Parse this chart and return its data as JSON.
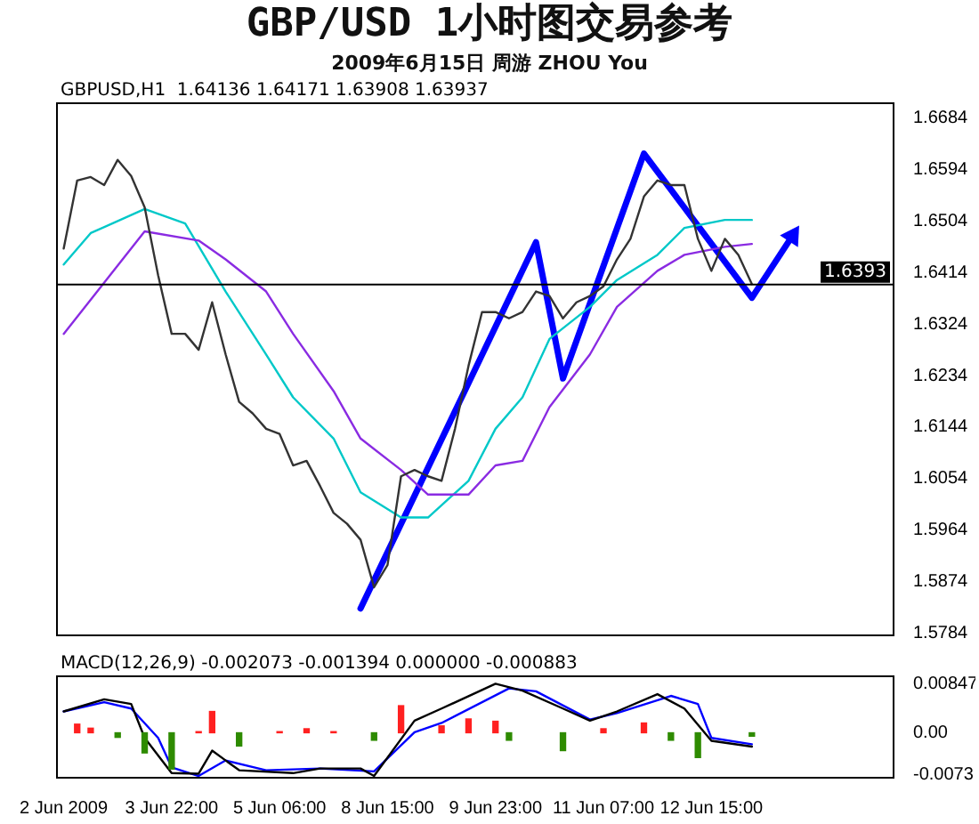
{
  "chart_data": [
    {
      "type": "line",
      "title": "GBP/USD 1小时图交易参考",
      "subtitle": "2009年6月15日   周游 ZHOU You",
      "annotations": [
        "GBPUSD,H1  1.64136 1.64171 1.63908 1.63937"
      ],
      "categories": [
        null,
        null,
        null,
        null,
        null,
        null,
        null,
        null,
        null,
        null,
        null,
        null,
        null,
        null,
        null,
        null,
        null,
        null,
        null,
        null,
        null,
        null,
        null,
        null,
        null,
        null,
        null,
        null,
        null,
        null,
        null,
        null,
        null,
        null,
        null,
        null,
        null,
        null,
        null,
        null,
        null,
        null,
        null,
        null,
        null,
        null,
        null,
        null,
        null,
        null,
        null,
        null,
        null,
        null,
        null,
        null,
        null,
        null,
        null,
        null,
        null,
        null
      ],
      "ylim": [
        1.578,
        1.671
      ],
      "yticks": [
        1.5784,
        1.5874,
        1.5964,
        1.6054,
        1.6144,
        1.6234,
        1.6324,
        1.6414,
        1.6504,
        1.6594,
        1.6684
      ],
      "tick_labels": "y",
      "grid": false,
      "legend": false,
      "marker": "none",
      "line_style": "solid",
      "ref_lines": [
        {
          "axis": "y",
          "value": 1.6393,
          "label": "1.6393",
          "color": "#000000"
        }
      ],
      "series": [
        {
          "color": "#333333",
          "values": [
            1.6456,
            1.6575,
            1.6581,
            1.6567,
            1.6611,
            1.6583,
            1.6528,
            1.6409,
            1.6307,
            1.6307,
            1.6279,
            1.6362,
            1.6271,
            1.6188,
            1.6168,
            1.6141,
            1.6132,
            1.6077,
            1.6085,
            1.6041,
            1.5994,
            1.5975,
            1.5947,
            1.5864,
            1.5903,
            1.6058,
            1.6069,
            1.6058,
            1.605,
            1.6141,
            1.6251,
            1.6345,
            1.6345,
            1.6334,
            1.6345,
            1.6381,
            1.6373,
            1.6334,
            1.6362,
            1.6373,
            1.639,
            1.6437,
            1.6473,
            1.6547,
            1.6575,
            1.6567,
            1.6567,
            1.6473,
            1.6417,
            1.6473,
            1.6445,
            1.6394,
            null,
            null,
            null,
            null,
            null,
            null,
            null,
            null,
            null,
            null
          ]
        },
        {
          "color": "#8a2be2",
          "values": [
            1.6307,
            null,
            null,
            null,
            null,
            null,
            1.6486,
            null,
            null,
            null,
            1.647,
            null,
            1.6437,
            null,
            null,
            1.6381,
            null,
            1.6307,
            null,
            null,
            1.6207,
            null,
            1.6124,
            null,
            null,
            1.6069,
            null,
            1.6026,
            null,
            null,
            1.6026,
            null,
            1.6077,
            null,
            1.6085,
            null,
            1.6179,
            null,
            null,
            1.6271,
            null,
            1.6354,
            null,
            null,
            1.6417,
            null,
            1.6445,
            null,
            null,
            1.6459,
            null,
            1.6464,
            null,
            null,
            null,
            null,
            null,
            null,
            null,
            null,
            null,
            null
          ]
        },
        {
          "color": "#00c8c8",
          "values": [
            1.6428,
            null,
            1.6483,
            null,
            null,
            null,
            1.6525,
            null,
            null,
            1.65,
            null,
            null,
            1.6381,
            null,
            null,
            1.6271,
            null,
            1.6196,
            null,
            null,
            1.6124,
            null,
            1.603,
            null,
            null,
            1.5986,
            null,
            1.5986,
            null,
            null,
            1.605,
            null,
            1.6141,
            null,
            1.6196,
            null,
            1.6298,
            null,
            null,
            1.6354,
            null,
            1.6401,
            null,
            null,
            1.6445,
            null,
            1.6492,
            null,
            null,
            1.6506,
            null,
            1.6506,
            null,
            null,
            null,
            null,
            null,
            null,
            null,
            null,
            null,
            null
          ]
        },
        {
          "color": "#0000ff",
          "values": [
            null,
            null,
            null,
            null,
            null,
            null,
            null,
            null,
            null,
            null,
            null,
            null,
            null,
            null,
            null,
            null,
            null,
            null,
            null,
            null,
            null,
            null,
            1.5827,
            null,
            null,
            null,
            null,
            null,
            null,
            null,
            null,
            null,
            null,
            null,
            null,
            1.6467,
            null,
            1.6229,
            null,
            null,
            null,
            null,
            null,
            1.6622,
            null,
            null,
            null,
            null,
            null,
            null,
            null,
            1.637,
            null,
            null,
            1.6478,
            null,
            null,
            null,
            null,
            null,
            null,
            null
          ]
        }
      ]
    },
    {
      "type": "line",
      "annotations": [
        "MACD(12,26,9) -0.002073 -0.001394 0.000000 -0.000883"
      ],
      "categories": [
        "2 Jun 2009",
        null,
        null,
        null,
        null,
        null,
        null,
        null,
        "3 Jun 22:00",
        null,
        null,
        null,
        null,
        null,
        null,
        null,
        "5 Jun 06:00",
        null,
        null,
        null,
        null,
        null,
        null,
        null,
        "8 Jun 15:00",
        null,
        null,
        null,
        null,
        null,
        null,
        null,
        "9 Jun 23:00",
        null,
        null,
        null,
        null,
        null,
        null,
        null,
        "11 Jun 07:00",
        null,
        null,
        null,
        null,
        null,
        null,
        null,
        "12 Jun 15:00",
        null,
        null,
        null,
        null,
        null,
        null,
        null,
        null,
        null,
        null,
        null,
        null,
        null
      ],
      "ylim": [
        -0.0078,
        0.0098
      ],
      "yticks": [
        -0.0073,
        {
          "value": 0,
          "label": "0.00"
        },
        0.00847
      ],
      "grid": false,
      "legend": false,
      "marker": "none",
      "line_style": "solid",
      "series": [
        {
          "type": "bar",
          "color": "#ff2020",
          "values": [
            null,
            0.0015,
            0.0008,
            null,
            null,
            null,
            null,
            null,
            null,
            null,
            0.0002,
            0.0037,
            null,
            null,
            null,
            null,
            0.0002,
            null,
            0.0007,
            null,
            0.0002,
            null,
            null,
            null,
            null,
            0.0047,
            null,
            null,
            0.0012,
            null,
            0.0024,
            null,
            0.002,
            null,
            null,
            null,
            null,
            null,
            null,
            null,
            0.0007,
            null,
            null,
            0.0017,
            null,
            null,
            null,
            null,
            null,
            null,
            null,
            null,
            null,
            null,
            null,
            null,
            null,
            null,
            null,
            null,
            null,
            null
          ]
        },
        {
          "type": "bar",
          "color": "#2e8b00",
          "values": [
            null,
            null,
            null,
            null,
            -0.0008,
            null,
            -0.0035,
            null,
            -0.0063,
            null,
            null,
            null,
            null,
            -0.0023,
            null,
            null,
            null,
            null,
            null,
            null,
            null,
            null,
            null,
            -0.0013,
            null,
            null,
            null,
            null,
            null,
            null,
            null,
            null,
            null,
            -0.0013,
            null,
            null,
            null,
            -0.0031,
            null,
            null,
            null,
            null,
            null,
            null,
            null,
            -0.0013,
            null,
            -0.0043,
            null,
            null,
            null,
            -0.0006,
            null,
            null,
            null,
            null,
            null,
            null,
            null,
            null,
            null,
            null
          ]
        },
        {
          "color": "#000000",
          "values": [
            0.0037,
            null,
            null,
            0.0058,
            null,
            0.005,
            -0.0009,
            null,
            -0.007,
            null,
            -0.0071,
            -0.0031,
            null,
            -0.0065,
            null,
            null,
            null,
            -0.007,
            null,
            -0.0062,
            null,
            null,
            -0.0062,
            -0.0075,
            null,
            null,
            0.0021,
            null,
            0.0042,
            null,
            null,
            null,
            0.0085,
            null,
            0.0073,
            null,
            null,
            0.0042,
            null,
            0.0021,
            null,
            0.0037,
            null,
            null,
            0.0067,
            null,
            0.0042,
            null,
            -0.0014,
            null,
            null,
            -0.0024,
            null,
            null,
            null,
            null,
            null,
            null,
            null,
            null,
            null,
            null
          ]
        },
        {
          "color": "#0000ff",
          "values": [
            0.0037,
            null,
            null,
            0.0053,
            null,
            0.0042,
            null,
            -0.0009,
            -0.006,
            null,
            -0.0075,
            null,
            -0.0048,
            null,
            null,
            -0.0065,
            null,
            null,
            null,
            -0.0062,
            null,
            null,
            null,
            -0.0067,
            null,
            null,
            0.0001,
            null,
            0.0017,
            null,
            null,
            null,
            null,
            0.0077,
            null,
            0.0072,
            null,
            null,
            null,
            0.0023,
            null,
            0.0034,
            null,
            null,
            null,
            0.0064,
            null,
            0.005,
            -0.0009,
            null,
            null,
            -0.002,
            null,
            null,
            null,
            null,
            null,
            null,
            null,
            null,
            null,
            null
          ]
        }
      ]
    }
  ]
}
